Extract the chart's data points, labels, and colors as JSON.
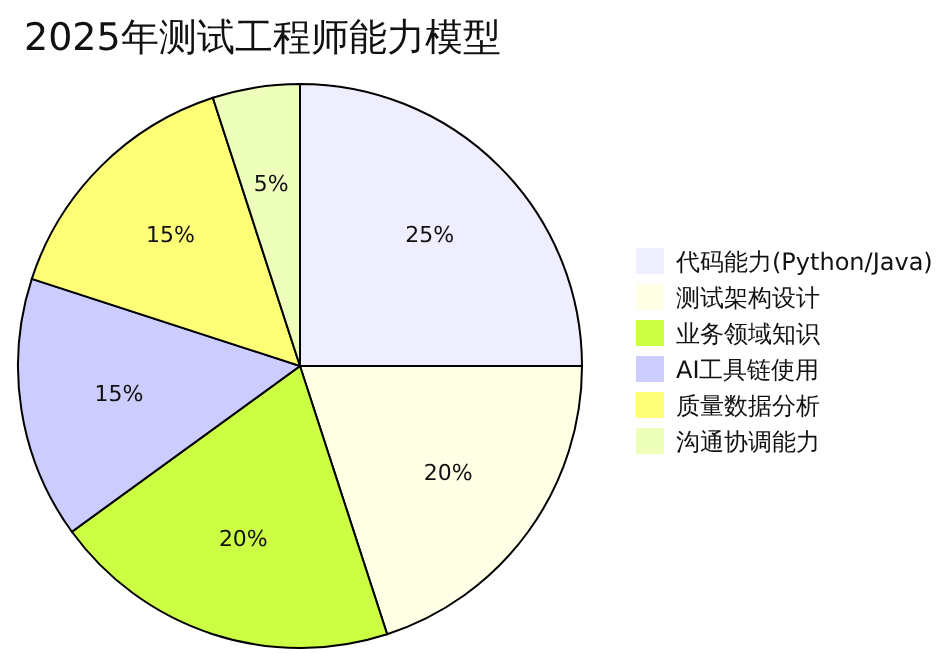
{
  "chart_data": {
    "type": "pie",
    "title": "2025年测试工程师能力模型",
    "categories": [
      "代码能力(Python/Java)",
      "测试架构设计",
      "业务领域知识",
      "AI工具链使用",
      "质量数据分析",
      "沟通协调能力"
    ],
    "values": [
      25,
      20,
      20,
      15,
      15,
      5
    ],
    "value_labels": [
      "25%",
      "20%",
      "20%",
      "15%",
      "15%",
      "5%"
    ],
    "colors": [
      "#eeeeff",
      "#ffffe6",
      "#ccff44",
      "#ccccff",
      "#ffff77",
      "#eeffbb"
    ],
    "legend": "right"
  }
}
